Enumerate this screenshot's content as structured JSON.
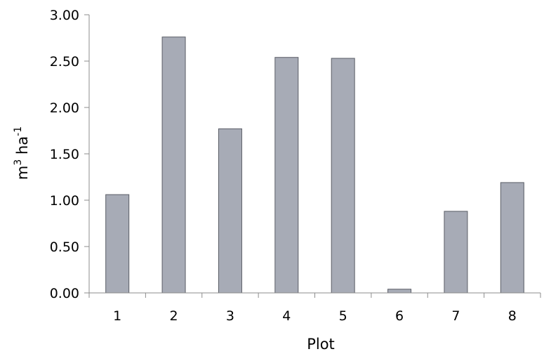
{
  "chart_data": {
    "type": "bar",
    "categories": [
      "1",
      "2",
      "3",
      "4",
      "5",
      "6",
      "7",
      "8"
    ],
    "values": [
      1.06,
      2.76,
      1.77,
      2.54,
      2.53,
      0.04,
      0.88,
      1.19
    ],
    "title": "",
    "xlabel": "Plot",
    "ylabel": {
      "base": "m",
      "sup1": "3",
      "mid": " ha",
      "sup2": "-1"
    },
    "ylim": [
      0,
      3
    ],
    "yticks": [
      0,
      0.5,
      1,
      1.5,
      2,
      2.5,
      3
    ],
    "ytick_labels": [
      "0.00",
      "0.50",
      "1.00",
      "1.50",
      "2.00",
      "2.50",
      "3.00"
    ],
    "grid": false,
    "legend": "none",
    "bar_color": "#a7abb6",
    "bar_edge_color": "#5a5d66",
    "axis_color": "#8c8c8c"
  }
}
